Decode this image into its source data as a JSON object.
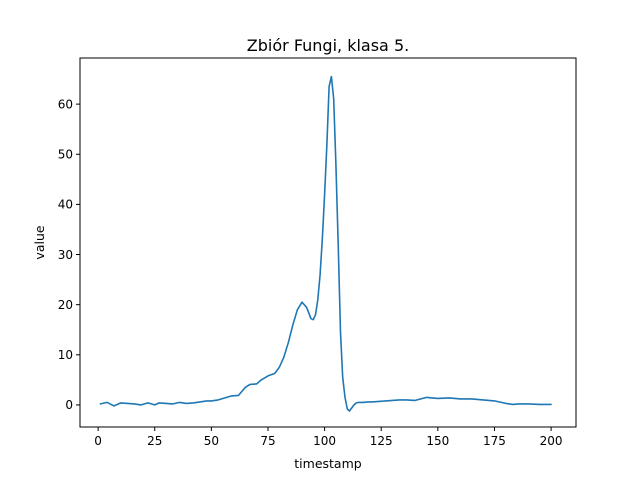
{
  "chart_data": {
    "type": "line",
    "title": "Zbiór Fungi, klasa 5.",
    "xlabel": "timestamp",
    "ylabel": "value",
    "xlim": [
      -8.0,
      211.0
    ],
    "ylim": [
      -4.4,
      69.2
    ],
    "xticks": [
      0,
      25,
      50,
      75,
      100,
      125,
      150,
      175,
      200
    ],
    "yticks": [
      0,
      10,
      20,
      30,
      40,
      50,
      60
    ],
    "grid": false,
    "legend": "none",
    "series": [
      {
        "color": "#1f77b4",
        "x": [
          1,
          4,
          7,
          10,
          13,
          16,
          19,
          22,
          25,
          27,
          30,
          33,
          36,
          39,
          42,
          45,
          48,
          50,
          53,
          56,
          59,
          62,
          65,
          67,
          70,
          72,
          75,
          78,
          80,
          82,
          84,
          86,
          88,
          90,
          92,
          94,
          95,
          96,
          97,
          98,
          99,
          100,
          101,
          102,
          103,
          104,
          105,
          106,
          107,
          108,
          109,
          110,
          111,
          112,
          113,
          114,
          115,
          117,
          119,
          121,
          124,
          127,
          130,
          133,
          136,
          140,
          145,
          150,
          155,
          160,
          165,
          170,
          175,
          180,
          183,
          186,
          190,
          195,
          200
        ],
        "y": [
          0.2,
          0.5,
          -0.2,
          0.4,
          0.3,
          0.2,
          0.0,
          0.4,
          0.0,
          0.4,
          0.3,
          0.2,
          0.5,
          0.3,
          0.4,
          0.6,
          0.8,
          0.8,
          1.0,
          1.4,
          1.8,
          1.9,
          3.5,
          4.1,
          4.2,
          5.0,
          5.8,
          6.3,
          7.5,
          9.5,
          12.5,
          16.0,
          19.0,
          20.5,
          19.5,
          17.2,
          17.0,
          18.0,
          21.0,
          26.0,
          33.0,
          42.0,
          52.0,
          63.5,
          65.5,
          61.0,
          48.0,
          32.0,
          14.5,
          5.5,
          1.5,
          -0.8,
          -1.2,
          -0.6,
          0.0,
          0.4,
          0.5,
          0.5,
          0.6,
          0.6,
          0.7,
          0.8,
          0.9,
          1.0,
          1.0,
          0.9,
          1.5,
          1.3,
          1.4,
          1.2,
          1.2,
          1.0,
          0.8,
          0.3,
          0.1,
          0.2,
          0.2,
          0.1,
          0.1
        ]
      }
    ]
  }
}
